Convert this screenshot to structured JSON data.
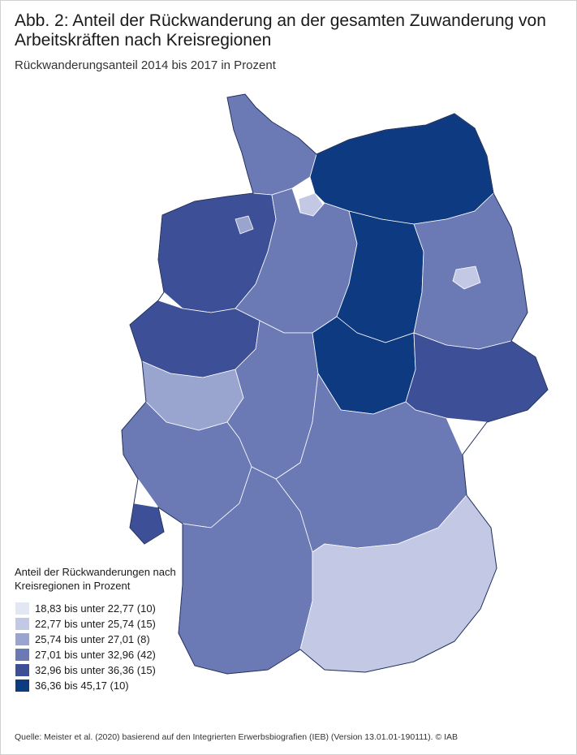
{
  "header": {
    "title": "Abb. 2: Anteil der Rückwanderung an der gesamten Zuwanderung von Arbeitskräften nach Kreisregionen",
    "subtitle": "Rückwanderungsanteil 2014 bis 2017 in Prozent"
  },
  "legend": {
    "title": "Anteil der Rückwanderungen nach Kreisregionen in Prozent",
    "items": [
      {
        "label": "18,83 bis unter 22,77 (10)",
        "color": "#e3e6f3"
      },
      {
        "label": "22,77 bis unter 25,74 (15)",
        "color": "#c3c9e4"
      },
      {
        "label": "25,74 bis unter 27,01 (8)",
        "color": "#9aa5cf"
      },
      {
        "label": "27,01 bis unter 32,96 (42)",
        "color": "#6b79b5"
      },
      {
        "label": "32,96 bis unter 36,36 (15)",
        "color": "#3d4f97"
      },
      {
        "label": "36,36 bis 45,17 (10)",
        "color": "#0d3a80"
      }
    ]
  },
  "source": "Quelle: Meister et al. (2020) basierend auf den Integrierten Erwerbsbiografien (IEB) (Version 13.01.01-190111). © IAB",
  "map_regions": [
    {
      "name": "schleswig-holstein",
      "class": 3
    },
    {
      "name": "hamburg",
      "class": 1
    },
    {
      "name": "mecklenburg-vorpommern",
      "class": 5
    },
    {
      "name": "niedersachsen-west",
      "class": 4
    },
    {
      "name": "niedersachsen-ost",
      "class": 3
    },
    {
      "name": "bremen",
      "class": 2
    },
    {
      "name": "sachsen-anhalt",
      "class": 5
    },
    {
      "name": "brandenburg",
      "class": 3
    },
    {
      "name": "berlin",
      "class": 1
    },
    {
      "name": "nrw-nord",
      "class": 4
    },
    {
      "name": "nrw-sued",
      "class": 2
    },
    {
      "name": "hessen",
      "class": 3
    },
    {
      "name": "thueringen",
      "class": 5
    },
    {
      "name": "sachsen",
      "class": 4
    },
    {
      "name": "rheinland-pfalz",
      "class": 3
    },
    {
      "name": "saarland",
      "class": 4
    },
    {
      "name": "baden-wuerttemberg",
      "class": 3
    },
    {
      "name": "bayern-nord",
      "class": 3
    },
    {
      "name": "bayern-sued",
      "class": 1
    }
  ]
}
